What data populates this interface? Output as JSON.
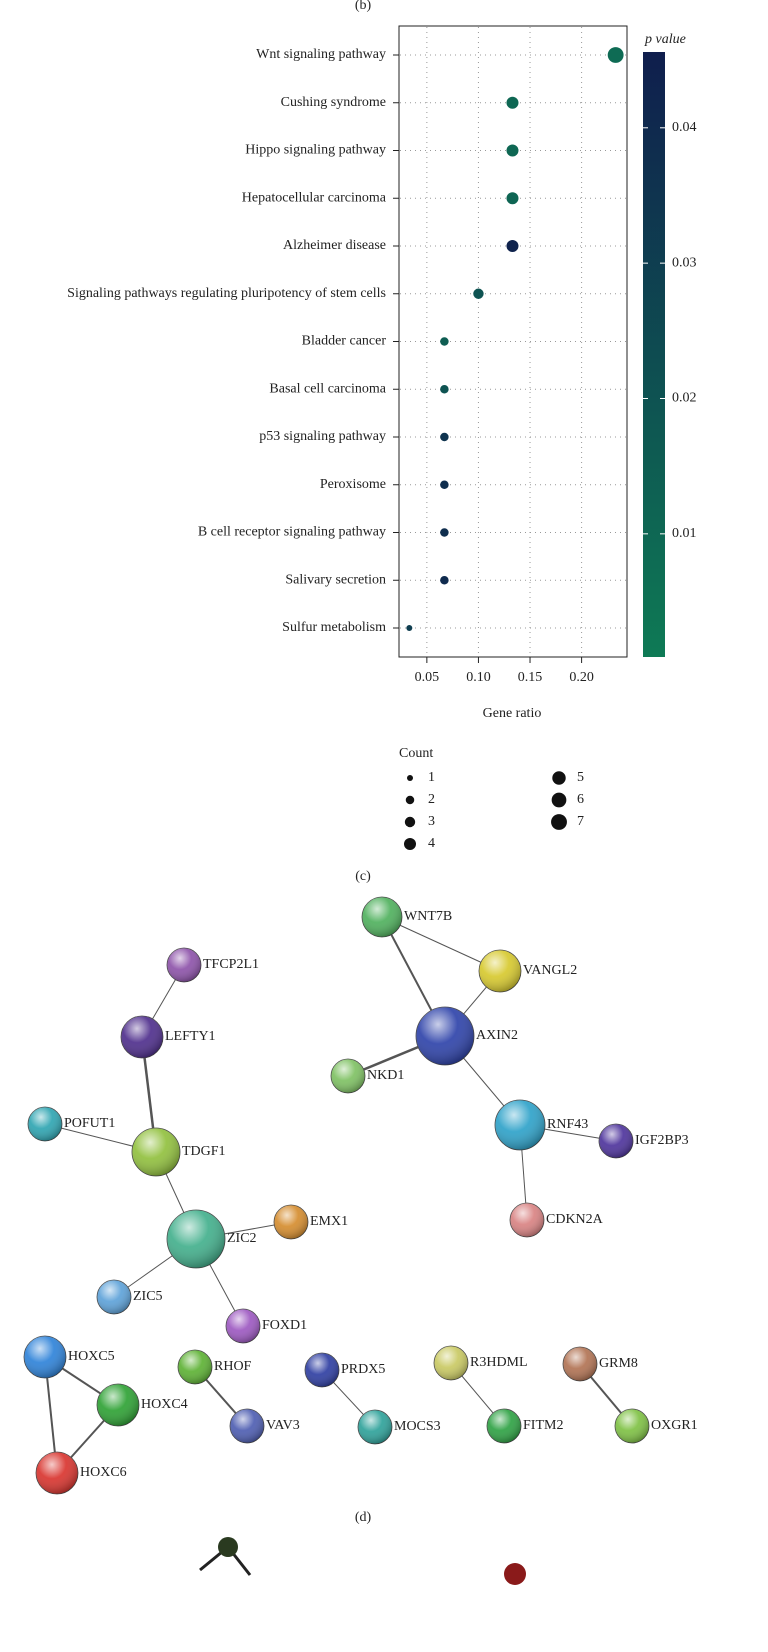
{
  "panel_b_label": "(b)",
  "chart_data": {
    "type": "dot",
    "categories": [
      "Wnt signaling pathway",
      "Cushing syndrome",
      "Hippo signaling pathway",
      "Hepatocellular carcinoma",
      "Alzheimer disease",
      "Signaling pathways regulating pluripotency of stem cells",
      "Bladder cancer",
      "Basal cell carcinoma",
      "p53 signaling pathway",
      "Peroxisome",
      "B cell receptor signaling pathway",
      "Salivary secretion",
      "Sulfur metabolism"
    ],
    "values": [
      0.233,
      0.133,
      0.133,
      0.133,
      0.133,
      0.1,
      0.067,
      0.067,
      0.067,
      0.067,
      0.067,
      0.067,
      0.033
    ],
    "counts": [
      7,
      4,
      4,
      4,
      4,
      3,
      2,
      2,
      2,
      2,
      2,
      2,
      1
    ],
    "pvalues": [
      0.008,
      0.01,
      0.01,
      0.011,
      0.043,
      0.02,
      0.015,
      0.02,
      0.035,
      0.038,
      0.038,
      0.04,
      0.03
    ],
    "x_label": "Gene ratio",
    "xlim": [
      0.023,
      0.244
    ],
    "xticks": [
      0.05,
      {
        "value": 0.1,
        "label": "0.10"
      },
      0.15,
      {
        "value": 0.2,
        "label": "0.20"
      }
    ],
    "colorbar_title": "p value",
    "colorscale": [
      "#0e7a55",
      "#0f1e4d"
    ],
    "clim": [
      0.0009,
      0.0456
    ],
    "cticks": [
      0.01,
      0.02,
      0.03,
      0.04
    ],
    "grid": true,
    "size_legend": {
      "title": "Count",
      "values": [
        1,
        2,
        3,
        4,
        5,
        6,
        7
      ]
    }
  },
  "panel_c_label": "(c)",
  "network": {
    "nodes": [
      "TFCP2L1",
      "LEFTY1",
      "POFUT1",
      "TDGF1",
      "ZIC2",
      "EMX1",
      "ZIC5",
      "FOXD1",
      "WNT7B",
      "VANGL2",
      "AXIN2",
      "NKD1",
      "RNF43",
      "IGF2BP3",
      "CDKN2A",
      "HOXC5",
      "HOXC4",
      "HOXC6",
      "RHOF",
      "VAV3",
      "PRDX5",
      "MOCS3",
      "R3HDML",
      "FITM2",
      "GRM8",
      "OXGR1"
    ]
  },
  "panel_d_label": "(d)"
}
